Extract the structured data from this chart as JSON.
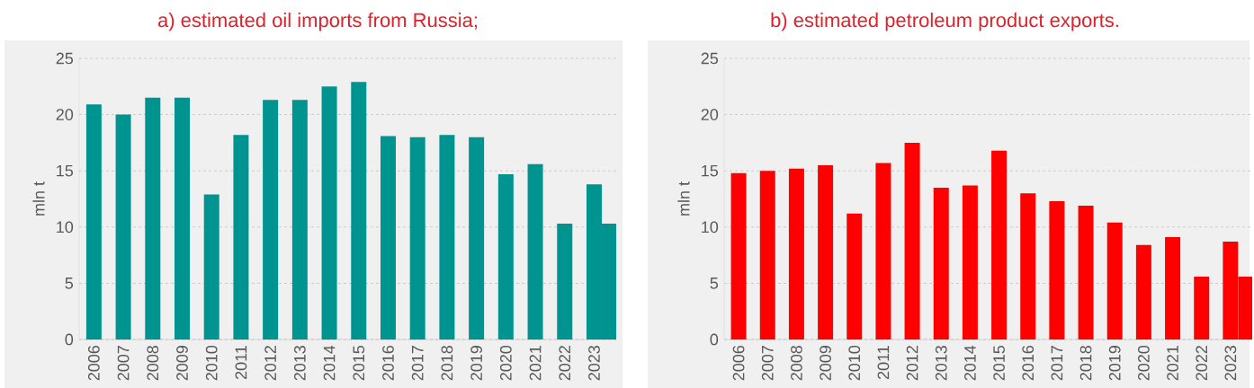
{
  "chart_data": [
    {
      "type": "bar",
      "title": "a) estimated oil imports from Russia;",
      "ylabel": "mln t",
      "categories": [
        "2006",
        "2007",
        "2008",
        "2009",
        "2010",
        "2011",
        "2012",
        "2013",
        "2014",
        "2015",
        "2016",
        "2017",
        "2018",
        "2019",
        "2020",
        "2021",
        "2022",
        "2023"
      ],
      "series": [
        {
          "color": "#009490",
          "values": [
            20.9,
            20.0,
            21.5,
            21.5,
            12.9,
            18.2,
            21.3,
            21.3,
            22.5,
            22.9,
            18.1,
            18.0,
            18.2,
            18.0,
            14.7,
            15.6,
            10.3,
            13.8
          ]
        },
        {
          "color": "#009490",
          "values": [
            null,
            null,
            null,
            null,
            null,
            null,
            null,
            null,
            null,
            null,
            null,
            null,
            null,
            null,
            null,
            null,
            null,
            10.3
          ]
        }
      ],
      "ylim": [
        0,
        25
      ],
      "yticks": [
        0,
        5,
        10,
        15,
        20,
        25
      ],
      "grid": "y"
    },
    {
      "type": "bar",
      "title": "b) estimated petroleum product exports.",
      "ylabel": "mln t",
      "categories": [
        "2006",
        "2007",
        "2008",
        "2009",
        "2010",
        "2011",
        "2012",
        "2013",
        "2014",
        "2015",
        "2016",
        "2017",
        "2018",
        "2019",
        "2020",
        "2021",
        "2022",
        "2023"
      ],
      "series": [
        {
          "color": "#ff0000",
          "values": [
            14.8,
            15.0,
            15.2,
            15.5,
            11.2,
            15.7,
            17.5,
            13.5,
            13.7,
            16.8,
            13.0,
            12.3,
            11.9,
            10.4,
            8.4,
            9.1,
            5.6,
            8.7
          ]
        },
        {
          "color": "#ff0000",
          "values": [
            null,
            null,
            null,
            null,
            null,
            null,
            null,
            null,
            null,
            null,
            null,
            null,
            null,
            null,
            null,
            null,
            null,
            5.6
          ]
        }
      ],
      "ylim": [
        0,
        25
      ],
      "yticks": [
        0,
        5,
        10,
        15,
        20,
        25
      ],
      "grid": "y"
    }
  ]
}
